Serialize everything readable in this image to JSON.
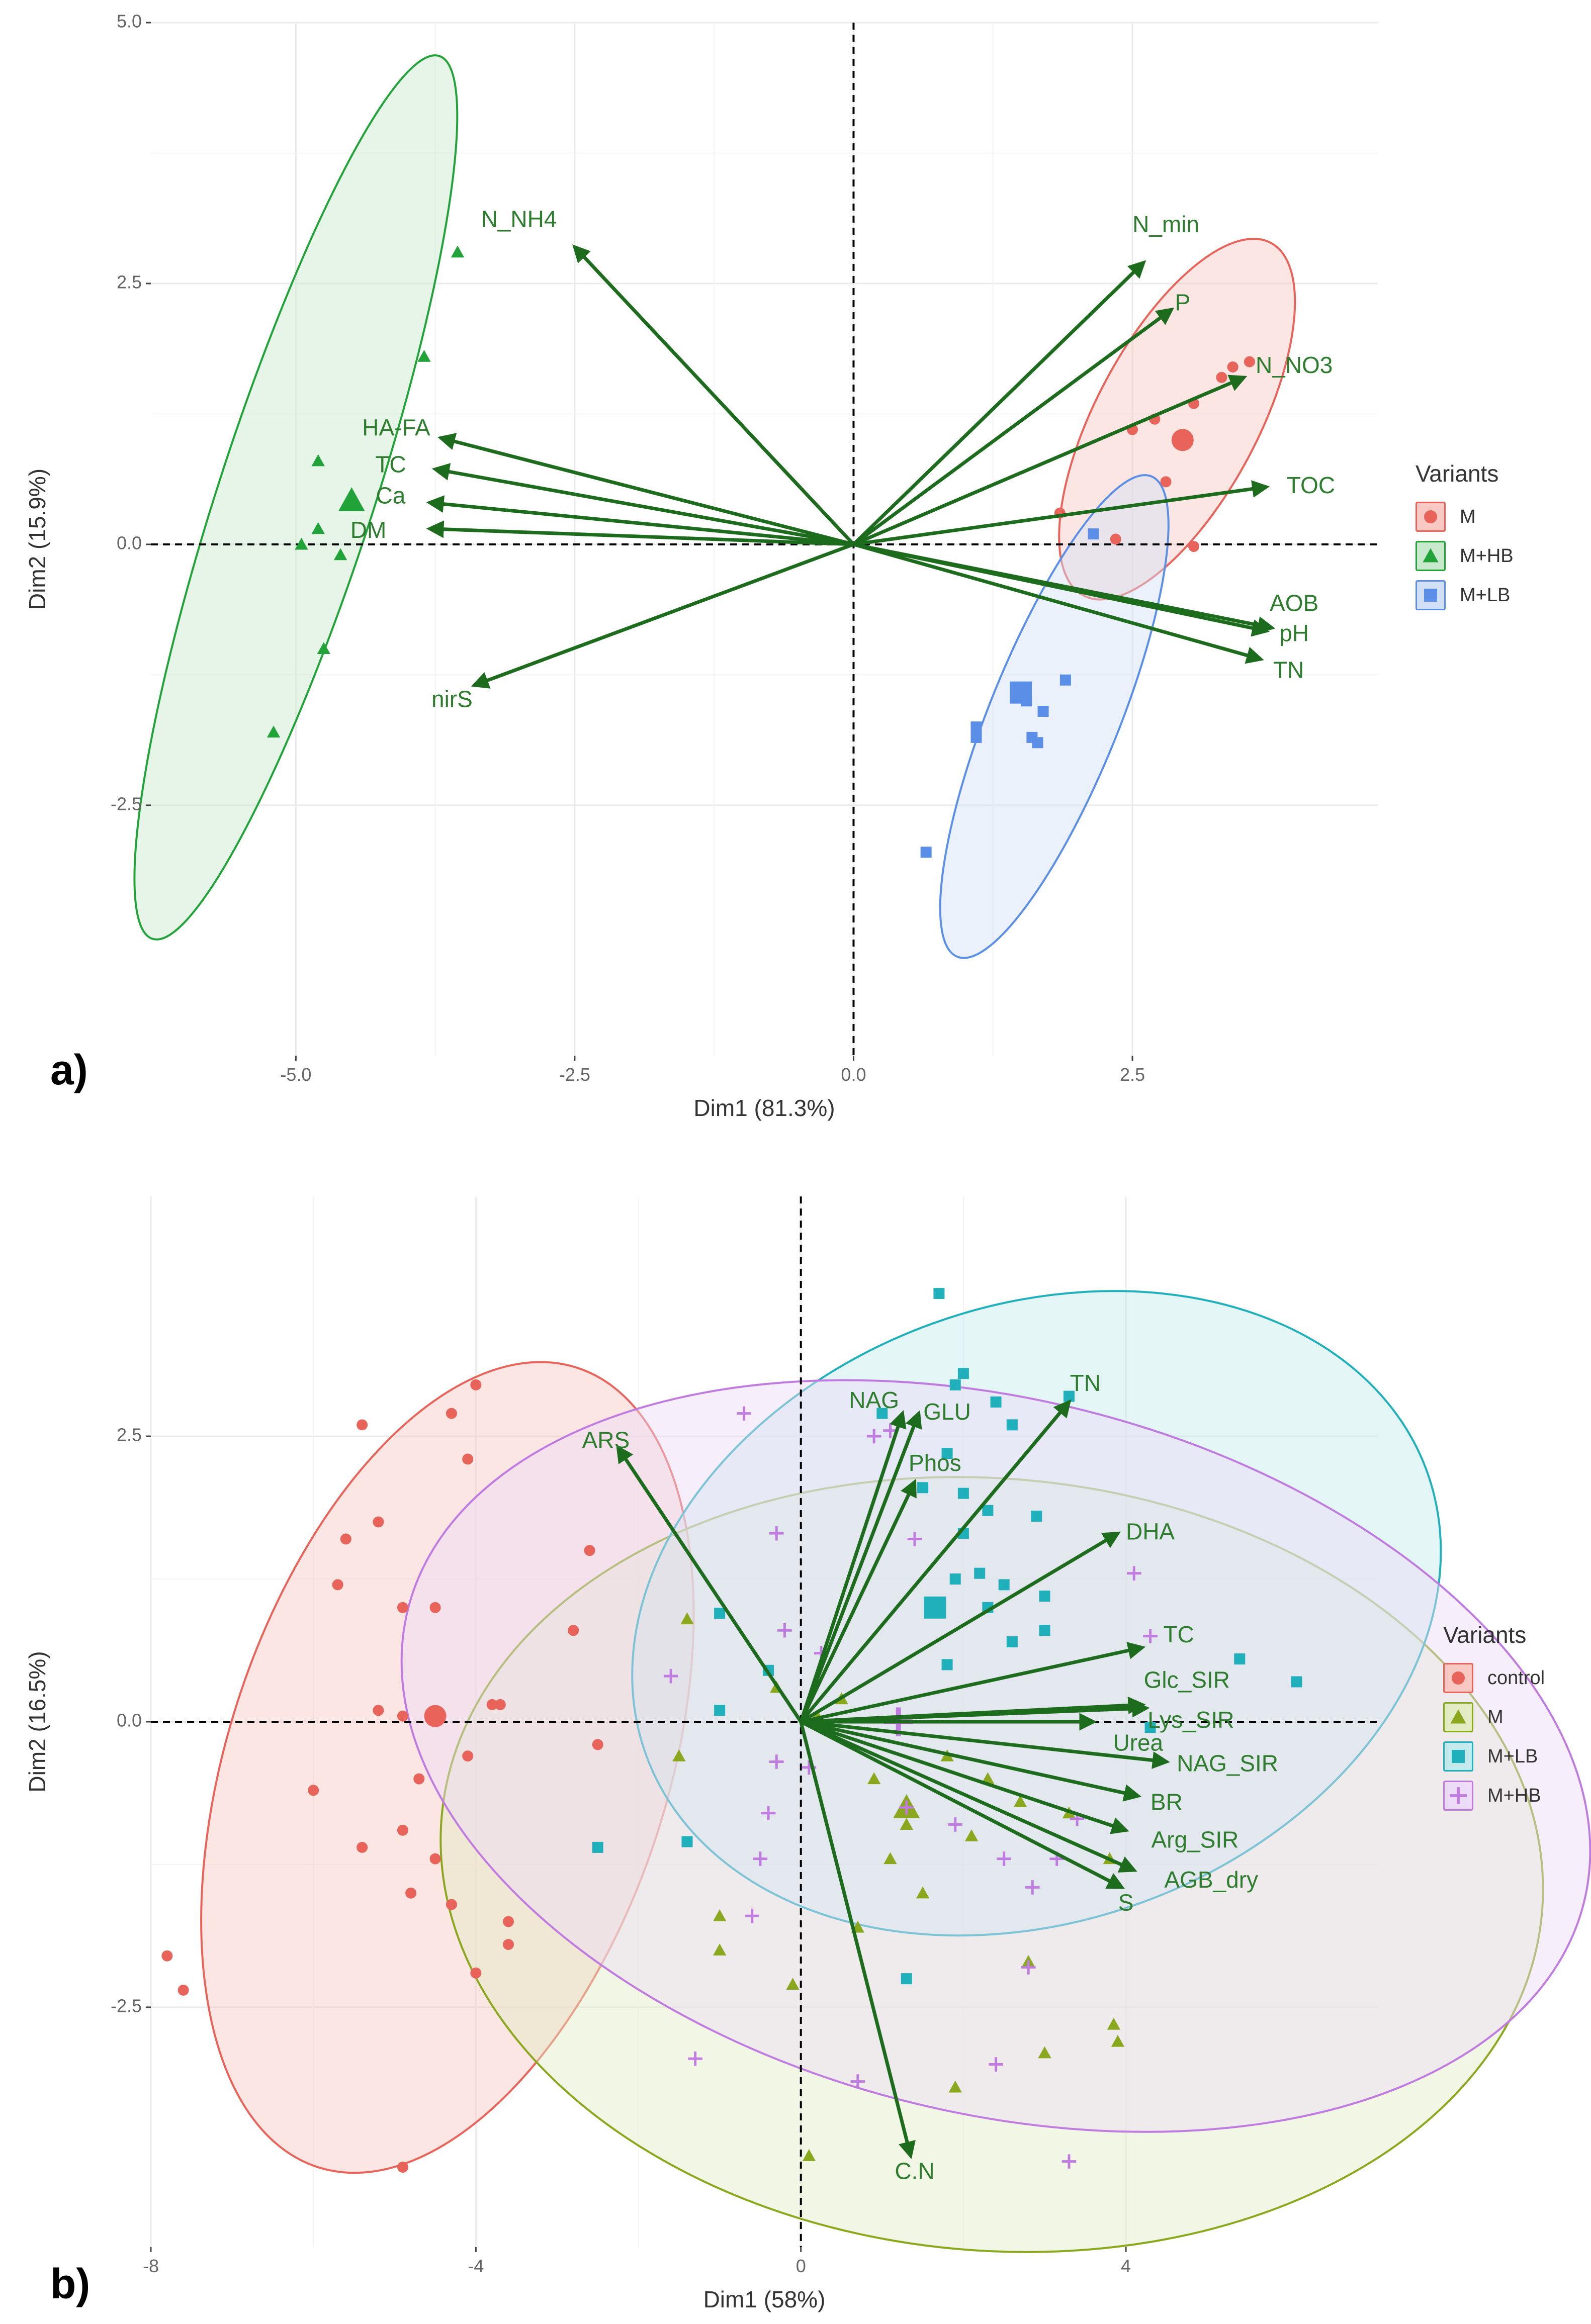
{
  "chart_data": [
    {
      "panel": "a)",
      "type": "scatter",
      "xlabel": "Dim1 (81.3%)",
      "ylabel": "Dim2 (15.9%)",
      "xlim": [
        -6.3,
        4.7
      ],
      "ylim": [
        -4.9,
        5.0
      ],
      "xticks": [
        -5.0,
        -2.5,
        0.0,
        2.5
      ],
      "xtick_labels": [
        "-5.0",
        "-2.5",
        "0.0",
        "2.5"
      ],
      "yticks": [
        -2.5,
        0.0,
        2.5,
        5.0
      ],
      "ytick_labels": [
        "-2.5",
        "0.0",
        "2.5",
        "5.0"
      ],
      "legend_title": "Variants",
      "legend_position": "right",
      "groups": [
        {
          "name": "M",
          "marker": "circle",
          "color": "#e8645a",
          "fill": "#f8c8c3",
          "ellipse": {
            "cx": 2.9,
            "cy": 1.2,
            "rx": 1.85,
            "ry": 0.75,
            "angle": 62
          },
          "centroid": [
            2.95,
            1.0
          ],
          "points": [
            [
              2.5,
              1.1
            ],
            [
              2.7,
              1.2
            ],
            [
              2.8,
              0.6
            ],
            [
              3.3,
              1.6
            ],
            [
              3.4,
              1.7
            ],
            [
              3.55,
              1.75
            ],
            [
              3.05,
              1.35
            ],
            [
              2.35,
              0.05
            ],
            [
              3.05,
              -0.02
            ],
            [
              1.85,
              0.3
            ]
          ]
        },
        {
          "name": "M+HB",
          "marker": "triangle",
          "color": "#22a33a",
          "fill": "#c8e9cc",
          "ellipse": {
            "cx": -5.0,
            "cy": 0.45,
            "rx": 4.3,
            "ry": 0.72,
            "angle": 72
          },
          "centroid": [
            -4.5,
            0.42
          ],
          "points": [
            [
              -3.55,
              2.8
            ],
            [
              -3.85,
              1.8
            ],
            [
              -4.8,
              0.8
            ],
            [
              -4.8,
              0.15
            ],
            [
              -4.95,
              0.0
            ],
            [
              -4.6,
              -0.1
            ],
            [
              -4.75,
              -1.0
            ],
            [
              -5.2,
              -1.8
            ]
          ]
        },
        {
          "name": "M+LB",
          "marker": "square",
          "color": "#5b8ee6",
          "fill": "#d2e0f7",
          "ellipse": {
            "cx": 1.8,
            "cy": -1.65,
            "rx": 2.4,
            "ry": 0.6,
            "angle": 68
          },
          "centroid": [
            1.5,
            -1.42
          ],
          "points": [
            [
              1.9,
              -1.3
            ],
            [
              1.7,
              -1.6
            ],
            [
              1.6,
              -1.85
            ],
            [
              1.1,
              -1.75
            ],
            [
              1.1,
              -1.85
            ],
            [
              0.65,
              -2.95
            ],
            [
              2.15,
              0.1
            ],
            [
              1.65,
              -1.9
            ],
            [
              1.55,
              -1.5
            ]
          ]
        }
      ],
      "loadings": [
        {
          "name": "N_NH4",
          "x": -2.5,
          "y": 2.85,
          "lx": -3.0,
          "ly": 3.1
        },
        {
          "name": "N_min",
          "x": 2.6,
          "y": 2.7,
          "lx": 2.8,
          "ly": 3.05
        },
        {
          "name": "P",
          "x": 2.85,
          "y": 2.25,
          "lx": 2.95,
          "ly": 2.3
        },
        {
          "name": "N_NO3",
          "x": 3.5,
          "y": 1.6,
          "lx": 3.95,
          "ly": 1.7
        },
        {
          "name": "TOC",
          "x": 3.7,
          "y": 0.55,
          "lx": 4.1,
          "ly": 0.55
        },
        {
          "name": "AOB",
          "x": 3.75,
          "y": -0.8,
          "lx": 3.95,
          "ly": -0.58
        },
        {
          "name": "pH",
          "x": 3.7,
          "y": -0.83,
          "lx": 3.95,
          "ly": -0.87
        },
        {
          "name": "TN",
          "x": 3.65,
          "y": -1.1,
          "lx": 3.9,
          "ly": -1.22
        },
        {
          "name": "HA-FA",
          "x": -3.7,
          "y": 1.02,
          "lx": -4.1,
          "ly": 1.1
        },
        {
          "name": "TC",
          "x": -3.75,
          "y": 0.72,
          "lx": -4.15,
          "ly": 0.75
        },
        {
          "name": "Ca",
          "x": -3.8,
          "y": 0.4,
          "lx": -4.15,
          "ly": 0.45
        },
        {
          "name": "DM",
          "x": -3.8,
          "y": 0.15,
          "lx": -4.35,
          "ly": 0.12
        },
        {
          "name": "nirS",
          "x": -3.4,
          "y": -1.35,
          "lx": -3.6,
          "ly": -1.5
        }
      ]
    },
    {
      "panel": "b)",
      "type": "scatter",
      "xlabel": "Dim1 (58%)",
      "ylabel": "Dim2 (16.5%)",
      "xlim": [
        -8.0,
        7.1
      ],
      "ylim": [
        -4.6,
        4.6
      ],
      "xticks": [
        -8,
        -4,
        0,
        4
      ],
      "xtick_labels": [
        "-8",
        "-4",
        "0",
        "4"
      ],
      "yticks": [
        -2.5,
        0.0,
        2.5
      ],
      "ytick_labels": [
        "-2.5",
        "0.0",
        "2.5"
      ],
      "legend_title": "Variants",
      "legend_position": "right",
      "groups": [
        {
          "name": "control",
          "marker": "circle",
          "color": "#e8645a",
          "fill": "#f8c8c3",
          "ellipse": {
            "cx": -4.35,
            "cy": -0.4,
            "rx": 4.3,
            "ry": 2.25,
            "angle": 72
          },
          "centroid": [
            -4.5,
            0.05
          ],
          "points": [
            [
              -4.0,
              2.95
            ],
            [
              -4.3,
              2.7
            ],
            [
              -5.4,
              2.6
            ],
            [
              -4.1,
              2.3
            ],
            [
              -5.6,
              1.6
            ],
            [
              -5.2,
              1.75
            ],
            [
              -5.7,
              1.2
            ],
            [
              -4.9,
              1.0
            ],
            [
              -4.5,
              1.0
            ],
            [
              -3.8,
              0.15
            ],
            [
              -3.7,
              0.15
            ],
            [
              -4.9,
              0.05
            ],
            [
              -5.2,
              0.1
            ],
            [
              -4.7,
              -0.5
            ],
            [
              -4.1,
              -0.3
            ],
            [
              -6.0,
              -0.6
            ],
            [
              -4.9,
              -0.95
            ],
            [
              -4.5,
              -1.2
            ],
            [
              -5.4,
              -1.1
            ],
            [
              -4.8,
              -1.5
            ],
            [
              -4.3,
              -1.6
            ],
            [
              -3.6,
              -1.75
            ],
            [
              -3.6,
              -1.95
            ],
            [
              -4.0,
              -2.2
            ],
            [
              -7.8,
              -2.05
            ],
            [
              -7.6,
              -2.35
            ],
            [
              -4.9,
              -3.9
            ],
            [
              -2.5,
              -0.2
            ],
            [
              -2.8,
              0.8
            ],
            [
              -2.6,
              1.5
            ]
          ]
        },
        {
          "name": "M",
          "marker": "triangle",
          "color": "#8aa81e",
          "fill": "#e2ebc4",
          "ellipse": {
            "cx": 2.35,
            "cy": -1.25,
            "rx": 5.65,
            "ry": 3.95,
            "angle": -5
          },
          "centroid": [
            1.3,
            -0.75
          ],
          "points": [
            [
              0.2,
              0.05
            ],
            [
              0.5,
              0.2
            ],
            [
              -0.3,
              0.3
            ],
            [
              0.9,
              -0.5
            ],
            [
              1.3,
              -0.9
            ],
            [
              1.8,
              -0.3
            ],
            [
              2.3,
              -0.5
            ],
            [
              2.7,
              -0.7
            ],
            [
              3.3,
              -0.8
            ],
            [
              3.8,
              -1.2
            ],
            [
              2.1,
              -1.0
            ],
            [
              1.5,
              -1.5
            ],
            [
              0.7,
              -1.8
            ],
            [
              -0.1,
              -2.3
            ],
            [
              -1.0,
              -1.7
            ],
            [
              -1.5,
              -0.3
            ],
            [
              1.1,
              -1.2
            ],
            [
              2.8,
              -2.1
            ],
            [
              3.0,
              -2.9
            ],
            [
              3.85,
              -2.65
            ],
            [
              3.9,
              -2.8
            ],
            [
              1.9,
              -3.2
            ],
            [
              0.1,
              -3.8
            ],
            [
              -1.0,
              -2.0
            ],
            [
              -1.4,
              0.9
            ]
          ]
        },
        {
          "name": "M+LB",
          "marker": "square",
          "color": "#1fb0bb",
          "fill": "#c3e9ec",
          "ellipse": {
            "cx": 2.9,
            "cy": 0.95,
            "rx": 4.25,
            "ry": 3.15,
            "angle": 20
          },
          "centroid": [
            1.65,
            1.0
          ],
          "points": [
            [
              1.7,
              3.75
            ],
            [
              1.9,
              2.95
            ],
            [
              2.0,
              3.05
            ],
            [
              2.4,
              2.8
            ],
            [
              2.6,
              2.6
            ],
            [
              3.3,
              2.85
            ],
            [
              1.0,
              2.7
            ],
            [
              1.8,
              2.35
            ],
            [
              1.5,
              2.05
            ],
            [
              2.0,
              2.0
            ],
            [
              2.3,
              1.85
            ],
            [
              2.0,
              1.65
            ],
            [
              2.9,
              1.8
            ],
            [
              2.2,
              1.3
            ],
            [
              2.5,
              1.2
            ],
            [
              1.9,
              1.25
            ],
            [
              2.3,
              1.0
            ],
            [
              2.6,
              0.7
            ],
            [
              3.0,
              0.8
            ],
            [
              1.8,
              0.5
            ],
            [
              3.0,
              1.1
            ],
            [
              -1.0,
              0.95
            ],
            [
              -1.4,
              -1.05
            ],
            [
              -2.5,
              -1.1
            ],
            [
              -0.4,
              0.45
            ],
            [
              6.1,
              0.35
            ],
            [
              5.4,
              0.55
            ],
            [
              1.3,
              -2.25
            ],
            [
              4.3,
              -0.05
            ],
            [
              -1.0,
              0.1
            ]
          ]
        },
        {
          "name": "M+HB",
          "marker": "plus",
          "color": "#c07be0",
          "fill": "#ecdcf7",
          "ellipse": {
            "cx": 2.4,
            "cy": -0.3,
            "rx": 6.2,
            "ry": 3.65,
            "angle": -14
          },
          "centroid": [
            1.2,
            0.0
          ],
          "points": [
            [
              0.9,
              2.5
            ],
            [
              -0.7,
              2.7
            ],
            [
              -1.6,
              0.4
            ],
            [
              -0.6,
              -1.7
            ],
            [
              -0.4,
              -0.8
            ],
            [
              0.1,
              -0.4
            ],
            [
              -0.5,
              -1.2
            ],
            [
              -0.3,
              -0.35
            ],
            [
              0.25,
              0.6
            ],
            [
              1.4,
              1.6
            ],
            [
              1.1,
              2.55
            ],
            [
              1.3,
              -0.75
            ],
            [
              1.9,
              -0.9
            ],
            [
              2.5,
              -1.2
            ],
            [
              3.15,
              -1.2
            ],
            [
              4.1,
              1.3
            ],
            [
              4.3,
              0.75
            ],
            [
              3.4,
              -0.85
            ],
            [
              2.85,
              -1.45
            ],
            [
              2.8,
              -2.15
            ],
            [
              2.4,
              -3.0
            ],
            [
              -1.3,
              -2.95
            ],
            [
              0.7,
              -3.15
            ],
            [
              3.3,
              -3.85
            ],
            [
              -0.2,
              0.8
            ],
            [
              -0.3,
              1.65
            ]
          ]
        }
      ],
      "loadings": [
        {
          "name": "ARS",
          "x": -2.25,
          "y": 2.4,
          "lx": -2.4,
          "ly": 2.45
        },
        {
          "name": "NAG",
          "x": 1.25,
          "y": 2.7,
          "lx": 0.9,
          "ly": 2.8
        },
        {
          "name": "GLU",
          "x": 1.45,
          "y": 2.7,
          "lx": 1.8,
          "ly": 2.7
        },
        {
          "name": "Phos",
          "x": 1.4,
          "y": 2.1,
          "lx": 1.65,
          "ly": 2.25
        },
        {
          "name": "TN",
          "x": 3.3,
          "y": 2.8,
          "lx": 3.5,
          "ly": 2.95
        },
        {
          "name": "DHA",
          "x": 3.9,
          "y": 1.65,
          "lx": 4.3,
          "ly": 1.65
        },
        {
          "name": "TC",
          "x": 4.2,
          "y": 0.65,
          "lx": 4.65,
          "ly": 0.75
        },
        {
          "name": "Glc_SIR",
          "x": 4.2,
          "y": 0.15,
          "lx": 4.75,
          "ly": 0.35
        },
        {
          "name": "Lys_SIR",
          "x": 4.25,
          "y": 0.12,
          "lx": 4.8,
          "ly": 0.0
        },
        {
          "name": "Urea",
          "x": 3.6,
          "y": 0.0,
          "lx": 4.15,
          "ly": -0.2
        },
        {
          "name": "NAG_SIR",
          "x": 4.5,
          "y": -0.35,
          "lx": 5.25,
          "ly": -0.38
        },
        {
          "name": "BR",
          "x": 4.15,
          "y": -0.65,
          "lx": 4.5,
          "ly": -0.72
        },
        {
          "name": "Arg_SIR",
          "x": 4.0,
          "y": -0.95,
          "lx": 4.85,
          "ly": -1.05
        },
        {
          "name": "AGB_dry",
          "x": 4.1,
          "y": -1.3,
          "lx": 5.05,
          "ly": -1.4
        },
        {
          "name": "S",
          "x": 3.95,
          "y": -1.45,
          "lx": 4.0,
          "ly": -1.6
        },
        {
          "name": "C.N",
          "x": 1.35,
          "y": -3.8,
          "lx": 1.4,
          "ly": -3.95
        }
      ]
    }
  ],
  "legend_a": {
    "title": "Variants",
    "items": [
      {
        "label": "M",
        "marker": "circle",
        "color": "#e8645a",
        "fill": "#f8c8c3"
      },
      {
        "label": "M+HB",
        "marker": "triangle",
        "color": "#22a33a",
        "fill": "#c8e9cc"
      },
      {
        "label": "M+LB",
        "marker": "square",
        "color": "#5b8ee6",
        "fill": "#d2e0f7"
      }
    ]
  },
  "legend_b": {
    "title": "Variants",
    "items": [
      {
        "label": "control",
        "marker": "circle",
        "color": "#e8645a",
        "fill": "#f8c8c3"
      },
      {
        "label": "M",
        "marker": "triangle",
        "color": "#8aa81e",
        "fill": "#e2ebc4"
      },
      {
        "label": "M+LB",
        "marker": "square",
        "color": "#1fb0bb",
        "fill": "#c3e9ec"
      },
      {
        "label": "M+HB",
        "marker": "plus",
        "color": "#c07be0",
        "fill": "#ecdcf7"
      }
    ]
  },
  "panel_letters": {
    "a": "a)",
    "b": "b)"
  },
  "colors": {
    "arrow": "#1d6b1d",
    "label": "#2e7d2e",
    "axis_text": "#666666"
  }
}
